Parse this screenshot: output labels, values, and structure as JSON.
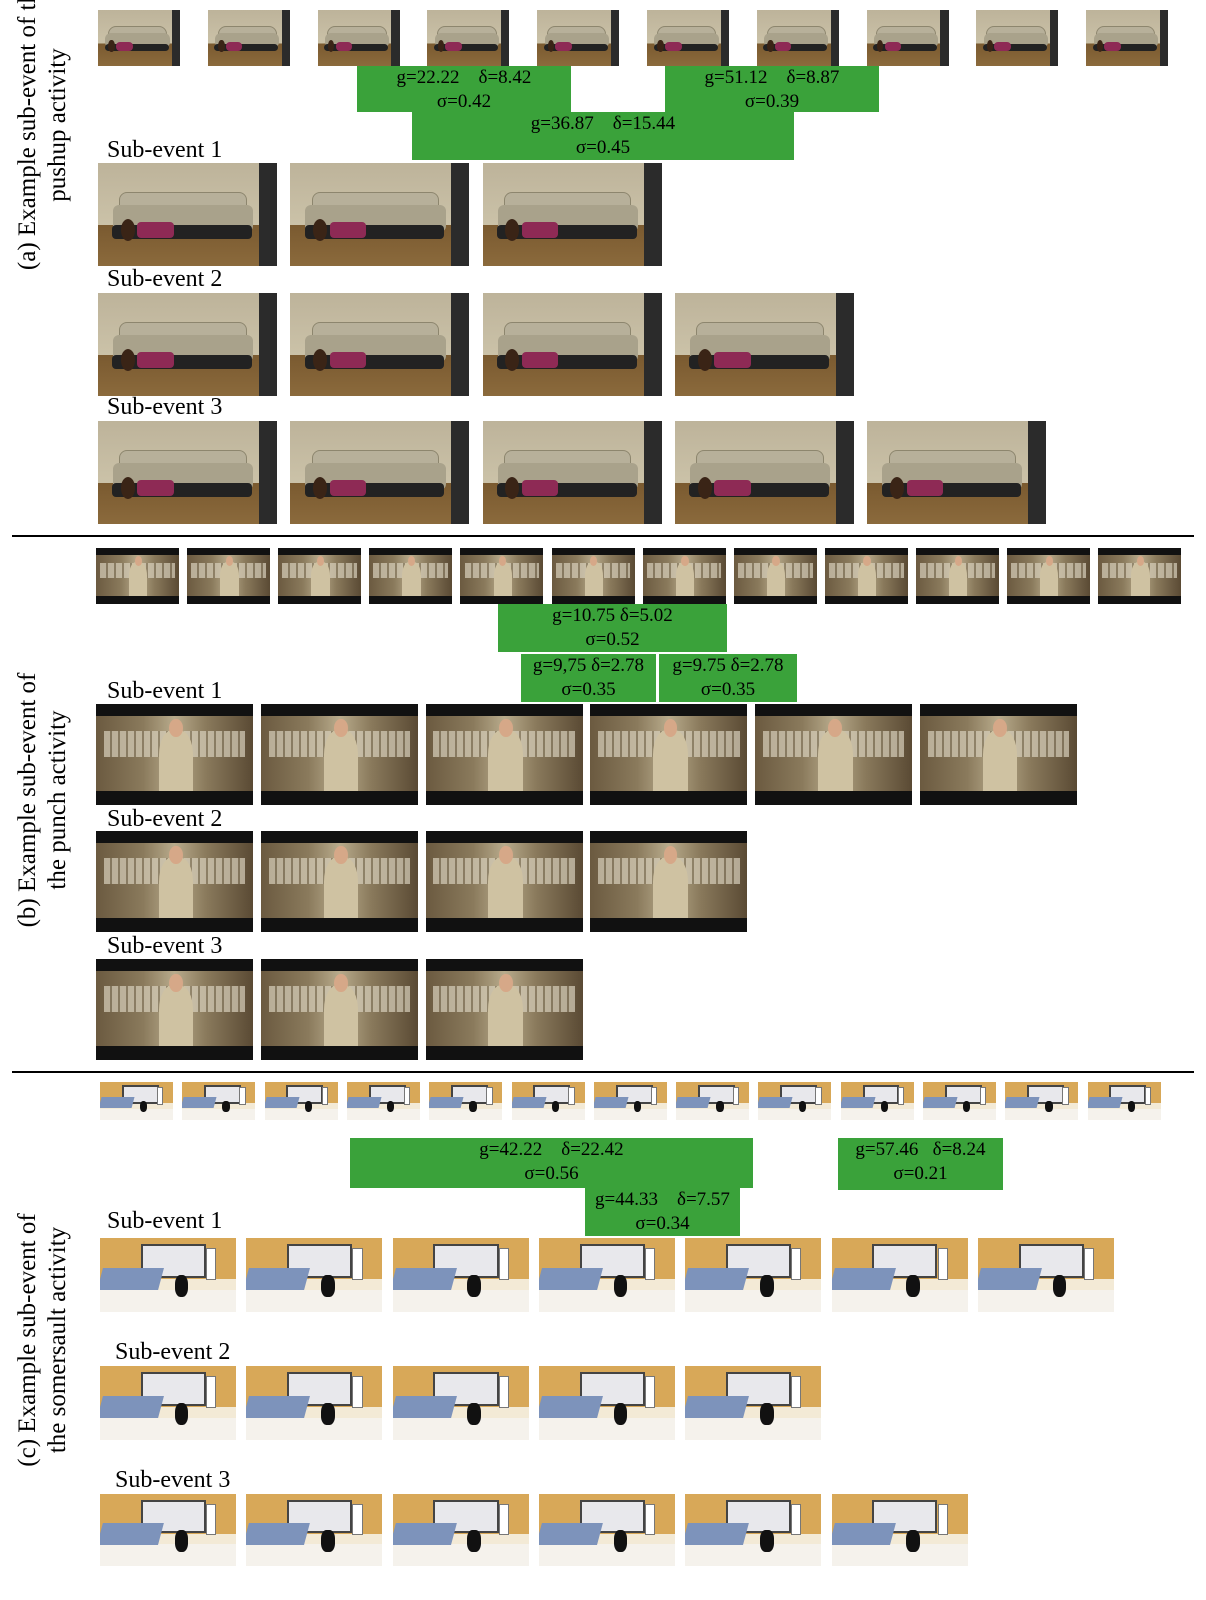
{
  "panels": [
    {
      "id": "a",
      "label_line1": "(a) Example sub-event of the",
      "label_line2": "pushup activity",
      "boxes": [
        {
          "l1": "g=22.22    δ=8.42",
          "l2": "σ=0.42"
        },
        {
          "l1": "g=51.12    δ=8.87",
          "l2": "σ=0.39"
        },
        {
          "l1": "g=36.87    δ=15.44",
          "l2": "σ=0.45"
        }
      ],
      "sub_events": [
        "Sub-event 1",
        "Sub-event 2",
        "Sub-event 3"
      ],
      "strip_count": 10,
      "row_counts": [
        3,
        4,
        5
      ]
    },
    {
      "id": "b",
      "label_line1": "(b) Example sub-event of",
      "label_line2": "the punch activity",
      "boxes": [
        {
          "l1": "g=10.75 δ=5.02",
          "l2": "σ=0.52"
        },
        {
          "l1": "g=9,75 δ=2.78",
          "l2": "σ=0.35"
        },
        {
          "l1": "g=9.75 δ=2.78",
          "l2": "σ=0.35"
        }
      ],
      "sub_events": [
        "Sub-event 1",
        "Sub-event 2",
        "Sub-event 3"
      ],
      "strip_count": 12,
      "row_counts": [
        6,
        4,
        3
      ]
    },
    {
      "id": "c",
      "label_line1": "(c) Example sub-event of",
      "label_line2": "the somersault activity",
      "boxes": [
        {
          "l1": "g=42.22    δ=22.42",
          "l2": "σ=0.56"
        },
        {
          "l1": "g=57.46   δ=8.24",
          "l2": "σ=0.21"
        },
        {
          "l1": "g=44.33    δ=7.57",
          "l2": "σ=0.34"
        }
      ],
      "sub_events": [
        "Sub-event 1",
        "Sub-event 2",
        "Sub-event 3"
      ],
      "strip_count": 13,
      "row_counts": [
        7,
        5,
        6
      ]
    }
  ]
}
